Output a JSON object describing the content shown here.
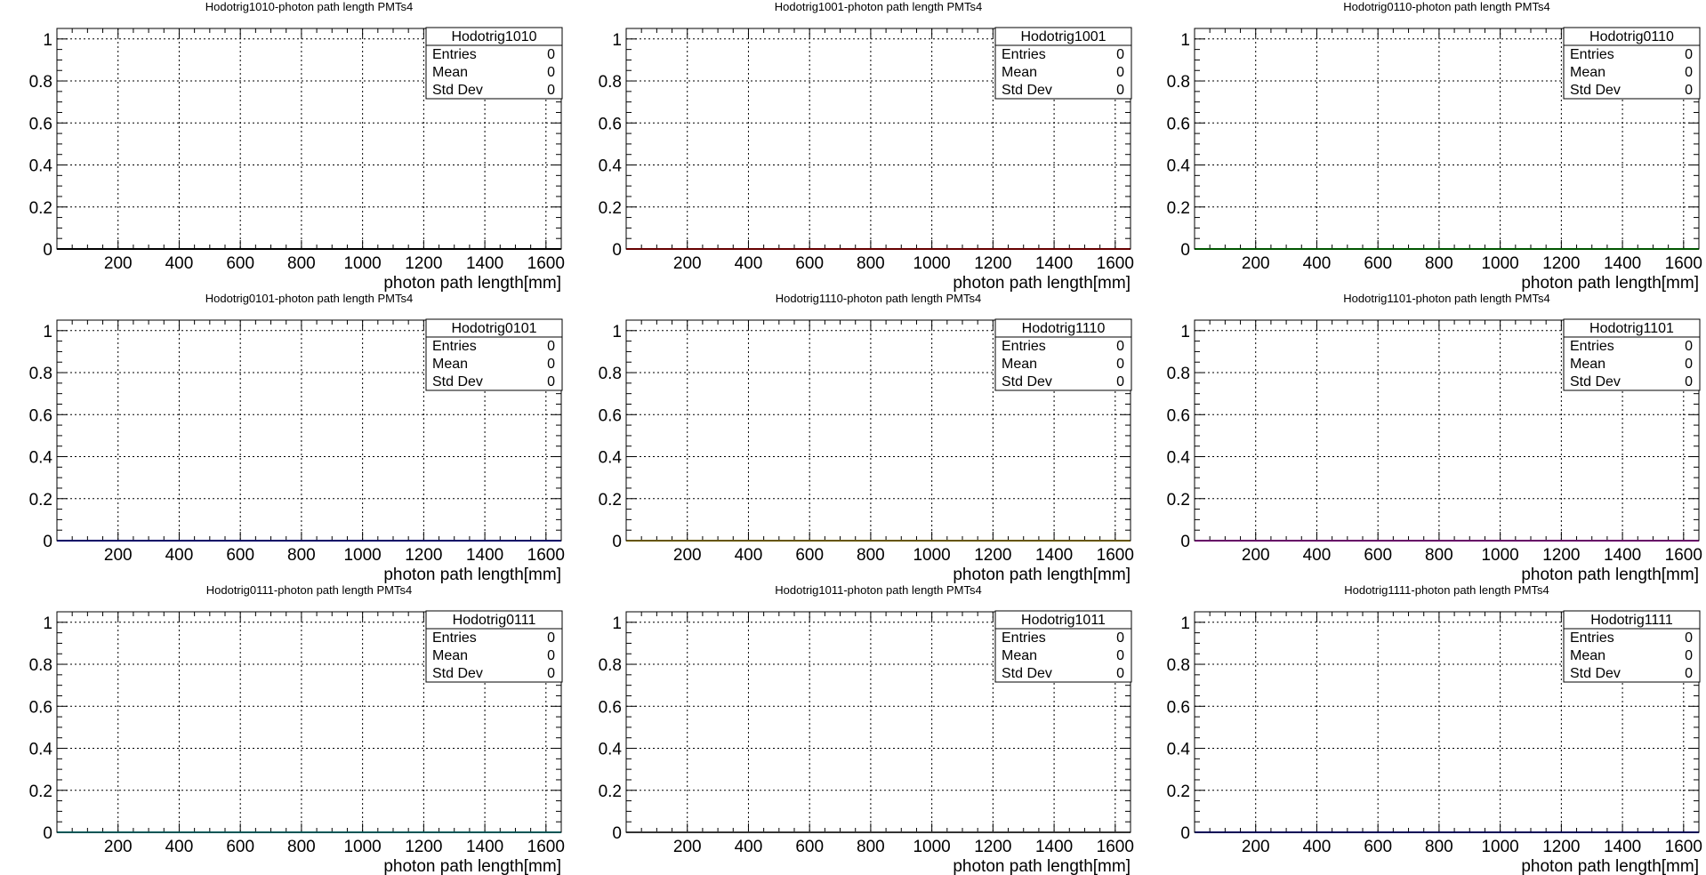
{
  "chart_data": [
    {
      "type": "line",
      "title": "Hodotrig1010-photon path length PMTs4",
      "xlabel": "photon path length[mm]",
      "ylabel": "",
      "xlim": [
        0,
        1650
      ],
      "ylim": [
        0,
        1.05
      ],
      "x_ticks": [
        "200",
        "400",
        "600",
        "800",
        "1000",
        "1200",
        "1400",
        "1600"
      ],
      "y_ticks": [
        "0",
        "0.2",
        "0.4",
        "0.6",
        "0.8",
        "1"
      ],
      "grid": true,
      "stats": {
        "name": "Hodotrig1010",
        "rows": [
          {
            "label": "Entries",
            "value": "0"
          },
          {
            "label": "Mean",
            "value": "0"
          },
          {
            "label": "Std Dev",
            "value": "0"
          }
        ]
      },
      "series": [
        {
          "x": [
            0,
            1650
          ],
          "y": [
            0,
            0
          ],
          "color": "#000000"
        }
      ]
    },
    {
      "type": "line",
      "title": "Hodotrig1001-photon path length PMTs4",
      "xlabel": "photon path length[mm]",
      "ylabel": "",
      "xlim": [
        0,
        1650
      ],
      "ylim": [
        0,
        1.05
      ],
      "x_ticks": [
        "200",
        "400",
        "600",
        "800",
        "1000",
        "1200",
        "1400",
        "1600"
      ],
      "y_ticks": [
        "0",
        "0.2",
        "0.4",
        "0.6",
        "0.8",
        "1"
      ],
      "grid": true,
      "stats": {
        "name": "Hodotrig1001",
        "rows": [
          {
            "label": "Entries",
            "value": "0"
          },
          {
            "label": "Mean",
            "value": "0"
          },
          {
            "label": "Std Dev",
            "value": "0"
          }
        ]
      },
      "series": [
        {
          "x": [
            0,
            1650
          ],
          "y": [
            0,
            0
          ],
          "color": "#cc0000"
        }
      ]
    },
    {
      "type": "line",
      "title": "Hodotrig0110-photon path length PMTs4",
      "xlabel": "photon path length[mm]",
      "ylabel": "",
      "xlim": [
        0,
        1650
      ],
      "ylim": [
        0,
        1.05
      ],
      "x_ticks": [
        "200",
        "400",
        "600",
        "800",
        "1000",
        "1200",
        "1400",
        "1600"
      ],
      "y_ticks": [
        "0",
        "0.2",
        "0.4",
        "0.6",
        "0.8",
        "1"
      ],
      "grid": true,
      "stats": {
        "name": "Hodotrig0110",
        "rows": [
          {
            "label": "Entries",
            "value": "0"
          },
          {
            "label": "Mean",
            "value": "0"
          },
          {
            "label": "Std Dev",
            "value": "0"
          }
        ]
      },
      "series": [
        {
          "x": [
            0,
            1650
          ],
          "y": [
            0,
            0
          ],
          "color": "#00aa00"
        }
      ]
    },
    {
      "type": "line",
      "title": "Hodotrig0101-photon path length PMTs4",
      "xlabel": "photon path length[mm]",
      "ylabel": "",
      "xlim": [
        0,
        1650
      ],
      "ylim": [
        0,
        1.05
      ],
      "x_ticks": [
        "200",
        "400",
        "600",
        "800",
        "1000",
        "1200",
        "1400",
        "1600"
      ],
      "y_ticks": [
        "0",
        "0.2",
        "0.4",
        "0.6",
        "0.8",
        "1"
      ],
      "grid": true,
      "stats": {
        "name": "Hodotrig0101",
        "rows": [
          {
            "label": "Entries",
            "value": "0"
          },
          {
            "label": "Mean",
            "value": "0"
          },
          {
            "label": "Std Dev",
            "value": "0"
          }
        ]
      },
      "series": [
        {
          "x": [
            0,
            1650
          ],
          "y": [
            0,
            0
          ],
          "color": "#0000cc"
        }
      ]
    },
    {
      "type": "line",
      "title": "Hodotrig1110-photon path length PMTs4",
      "xlabel": "photon path length[mm]",
      "ylabel": "",
      "xlim": [
        0,
        1650
      ],
      "ylim": [
        0,
        1.05
      ],
      "x_ticks": [
        "200",
        "400",
        "600",
        "800",
        "1000",
        "1200",
        "1400",
        "1600"
      ],
      "y_ticks": [
        "0",
        "0.2",
        "0.4",
        "0.6",
        "0.8",
        "1"
      ],
      "grid": true,
      "stats": {
        "name": "Hodotrig1110",
        "rows": [
          {
            "label": "Entries",
            "value": "0"
          },
          {
            "label": "Mean",
            "value": "0"
          },
          {
            "label": "Std Dev",
            "value": "0"
          }
        ]
      },
      "series": [
        {
          "x": [
            0,
            1650
          ],
          "y": [
            0,
            0
          ],
          "color": "#ccaa00"
        }
      ]
    },
    {
      "type": "line",
      "title": "Hodotrig1101-photon path length PMTs4",
      "xlabel": "photon path length[mm]",
      "ylabel": "",
      "xlim": [
        0,
        1650
      ],
      "ylim": [
        0,
        1.05
      ],
      "x_ticks": [
        "200",
        "400",
        "600",
        "800",
        "1000",
        "1200",
        "1400",
        "1600"
      ],
      "y_ticks": [
        "0",
        "0.2",
        "0.4",
        "0.6",
        "0.8",
        "1"
      ],
      "grid": true,
      "stats": {
        "name": "Hodotrig1101",
        "rows": [
          {
            "label": "Entries",
            "value": "0"
          },
          {
            "label": "Mean",
            "value": "0"
          },
          {
            "label": "Std Dev",
            "value": "0"
          }
        ]
      },
      "series": [
        {
          "x": [
            0,
            1650
          ],
          "y": [
            0,
            0
          ],
          "color": "#cc00cc"
        }
      ]
    },
    {
      "type": "line",
      "title": "Hodotrig0111-photon path length PMTs4",
      "xlabel": "photon path length[mm]",
      "ylabel": "",
      "xlim": [
        0,
        1650
      ],
      "ylim": [
        0,
        1.05
      ],
      "x_ticks": [
        "200",
        "400",
        "600",
        "800",
        "1000",
        "1200",
        "1400",
        "1600"
      ],
      "y_ticks": [
        "0",
        "0.2",
        "0.4",
        "0.6",
        "0.8",
        "1"
      ],
      "grid": true,
      "stats": {
        "name": "Hodotrig0111",
        "rows": [
          {
            "label": "Entries",
            "value": "0"
          },
          {
            "label": "Mean",
            "value": "0"
          },
          {
            "label": "Std Dev",
            "value": "0"
          }
        ]
      },
      "series": [
        {
          "x": [
            0,
            1650
          ],
          "y": [
            0,
            0
          ],
          "color": "#00aaaa"
        }
      ]
    },
    {
      "type": "line",
      "title": "Hodotrig1011-photon path length PMTs4",
      "xlabel": "photon path length[mm]",
      "ylabel": "",
      "xlim": [
        0,
        1650
      ],
      "ylim": [
        0,
        1.05
      ],
      "x_ticks": [
        "200",
        "400",
        "600",
        "800",
        "1000",
        "1200",
        "1400",
        "1600"
      ],
      "y_ticks": [
        "0",
        "0.2",
        "0.4",
        "0.6",
        "0.8",
        "1"
      ],
      "grid": true,
      "stats": {
        "name": "Hodotrig1011",
        "rows": [
          {
            "label": "Entries",
            "value": "0"
          },
          {
            "label": "Mean",
            "value": "0"
          },
          {
            "label": "Std Dev",
            "value": "0"
          }
        ]
      },
      "series": [
        {
          "x": [
            0,
            1650
          ],
          "y": [
            0,
            0
          ],
          "color": "#666666"
        }
      ]
    },
    {
      "type": "line",
      "title": "Hodotrig1111-photon path length PMTs4",
      "xlabel": "photon path length[mm]",
      "ylabel": "",
      "xlim": [
        0,
        1650
      ],
      "ylim": [
        0,
        1.05
      ],
      "x_ticks": [
        "200",
        "400",
        "600",
        "800",
        "1000",
        "1200",
        "1400",
        "1600"
      ],
      "y_ticks": [
        "0",
        "0.2",
        "0.4",
        "0.6",
        "0.8",
        "1"
      ],
      "grid": true,
      "stats": {
        "name": "Hodotrig1111",
        "rows": [
          {
            "label": "Entries",
            "value": "0"
          },
          {
            "label": "Mean",
            "value": "0"
          },
          {
            "label": "Std Dev",
            "value": "0"
          }
        ]
      },
      "series": [
        {
          "x": [
            0,
            1650
          ],
          "y": [
            0,
            0
          ],
          "color": "#0000aa"
        }
      ]
    }
  ]
}
